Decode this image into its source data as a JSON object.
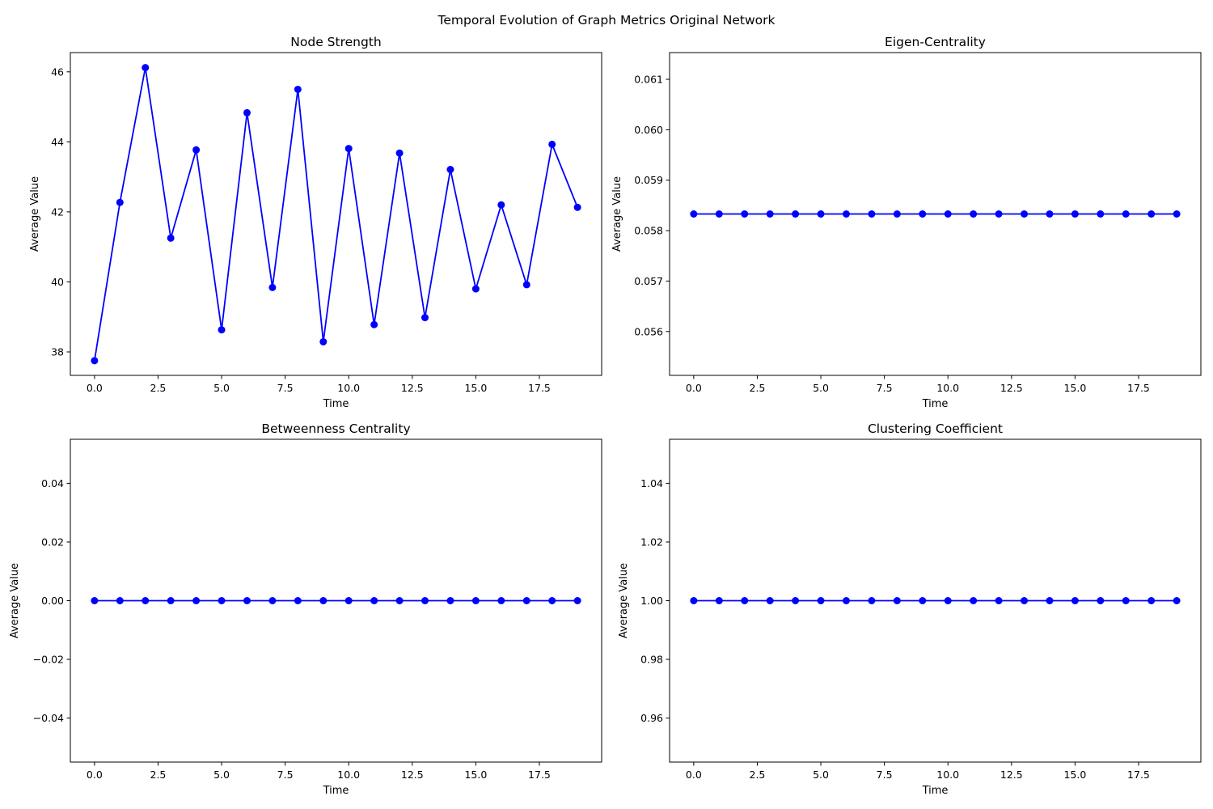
{
  "figure": {
    "suptitle": "Temporal Evolution of Graph Metrics Original Network"
  },
  "colors": {
    "series": "#0000ff",
    "axes": "#000000",
    "background": "#ffffff"
  },
  "chart_data": [
    {
      "type": "line",
      "title": "Node Strength",
      "xlabel": "Time",
      "ylabel": "Average Value",
      "xlim": [
        -0.95,
        19.95
      ],
      "ylim": [
        37.33,
        46.55
      ],
      "xticks": [
        0,
        2.5,
        5,
        7.5,
        10,
        12.5,
        15,
        17.5
      ],
      "xticklabels": [
        "0.0",
        "2.5",
        "5.0",
        "7.5",
        "10.0",
        "12.5",
        "15.0",
        "17.5"
      ],
      "yticks": [
        38,
        40,
        42,
        44,
        46
      ],
      "yticklabels": [
        "38",
        "40",
        "42",
        "44",
        "46"
      ],
      "marker": "circle",
      "grid": false,
      "series": [
        {
          "x": [
            0,
            1,
            2,
            3,
            4,
            5,
            6,
            7,
            8,
            9,
            10,
            11,
            12,
            13,
            14,
            15,
            16,
            17,
            18,
            19
          ],
          "y": [
            37.75,
            42.27,
            46.12,
            41.25,
            43.77,
            38.63,
            44.83,
            39.84,
            45.5,
            38.29,
            43.81,
            38.78,
            43.68,
            38.98,
            43.21,
            39.8,
            42.2,
            39.92,
            43.93,
            42.13
          ]
        }
      ]
    },
    {
      "type": "line",
      "title": "Eigen-Centrality",
      "xlabel": "Time",
      "ylabel": "Average Value",
      "xlim": [
        -0.95,
        19.95
      ],
      "ylim": [
        0.05513,
        0.06153
      ],
      "xticks": [
        0,
        2.5,
        5,
        7.5,
        10,
        12.5,
        15,
        17.5
      ],
      "xticklabels": [
        "0.0",
        "2.5",
        "5.0",
        "7.5",
        "10.0",
        "12.5",
        "15.0",
        "17.5"
      ],
      "yticks": [
        0.056,
        0.057,
        0.058,
        0.059,
        0.06,
        0.061
      ],
      "yticklabels": [
        "0.056",
        "0.057",
        "0.058",
        "0.059",
        "0.060",
        "0.061"
      ],
      "marker": "circle",
      "grid": false,
      "series": [
        {
          "x": [
            0,
            1,
            2,
            3,
            4,
            5,
            6,
            7,
            8,
            9,
            10,
            11,
            12,
            13,
            14,
            15,
            16,
            17,
            18,
            19
          ],
          "y": [
            0.05833,
            0.05833,
            0.05833,
            0.05833,
            0.05833,
            0.05833,
            0.05833,
            0.05833,
            0.05833,
            0.05833,
            0.05833,
            0.05833,
            0.05833,
            0.05833,
            0.05833,
            0.05833,
            0.05833,
            0.05833,
            0.05833,
            0.05833
          ]
        }
      ]
    },
    {
      "type": "line",
      "title": "Betweenness Centrality",
      "xlabel": "Time",
      "ylabel": "Average Value",
      "xlim": [
        -0.95,
        19.95
      ],
      "ylim": [
        -0.055,
        0.055
      ],
      "xticks": [
        0,
        2.5,
        5,
        7.5,
        10,
        12.5,
        15,
        17.5
      ],
      "xticklabels": [
        "0.0",
        "2.5",
        "5.0",
        "7.5",
        "10.0",
        "12.5",
        "15.0",
        "17.5"
      ],
      "yticks": [
        -0.04,
        -0.02,
        0,
        0.02,
        0.04
      ],
      "yticklabels": [
        "−0.04",
        "−0.02",
        "0.00",
        "0.02",
        "0.04"
      ],
      "marker": "circle",
      "grid": false,
      "series": [
        {
          "x": [
            0,
            1,
            2,
            3,
            4,
            5,
            6,
            7,
            8,
            9,
            10,
            11,
            12,
            13,
            14,
            15,
            16,
            17,
            18,
            19
          ],
          "y": [
            0,
            0,
            0,
            0,
            0,
            0,
            0,
            0,
            0,
            0,
            0,
            0,
            0,
            0,
            0,
            0,
            0,
            0,
            0,
            0
          ]
        }
      ]
    },
    {
      "type": "line",
      "title": "Clustering Coefficient",
      "xlabel": "Time",
      "ylabel": "Average Value",
      "xlim": [
        -0.95,
        19.95
      ],
      "ylim": [
        0.945,
        1.055
      ],
      "xticks": [
        0,
        2.5,
        5,
        7.5,
        10,
        12.5,
        15,
        17.5
      ],
      "xticklabels": [
        "0.0",
        "2.5",
        "5.0",
        "7.5",
        "10.0",
        "12.5",
        "15.0",
        "17.5"
      ],
      "yticks": [
        0.96,
        0.98,
        1.0,
        1.02,
        1.04
      ],
      "yticklabels": [
        "0.96",
        "0.98",
        "1.00",
        "1.02",
        "1.04"
      ],
      "marker": "circle",
      "grid": false,
      "series": [
        {
          "x": [
            0,
            1,
            2,
            3,
            4,
            5,
            6,
            7,
            8,
            9,
            10,
            11,
            12,
            13,
            14,
            15,
            16,
            17,
            18,
            19
          ],
          "y": [
            1,
            1,
            1,
            1,
            1,
            1,
            1,
            1,
            1,
            1,
            1,
            1,
            1,
            1,
            1,
            1,
            1,
            1,
            1,
            1
          ]
        }
      ]
    }
  ]
}
